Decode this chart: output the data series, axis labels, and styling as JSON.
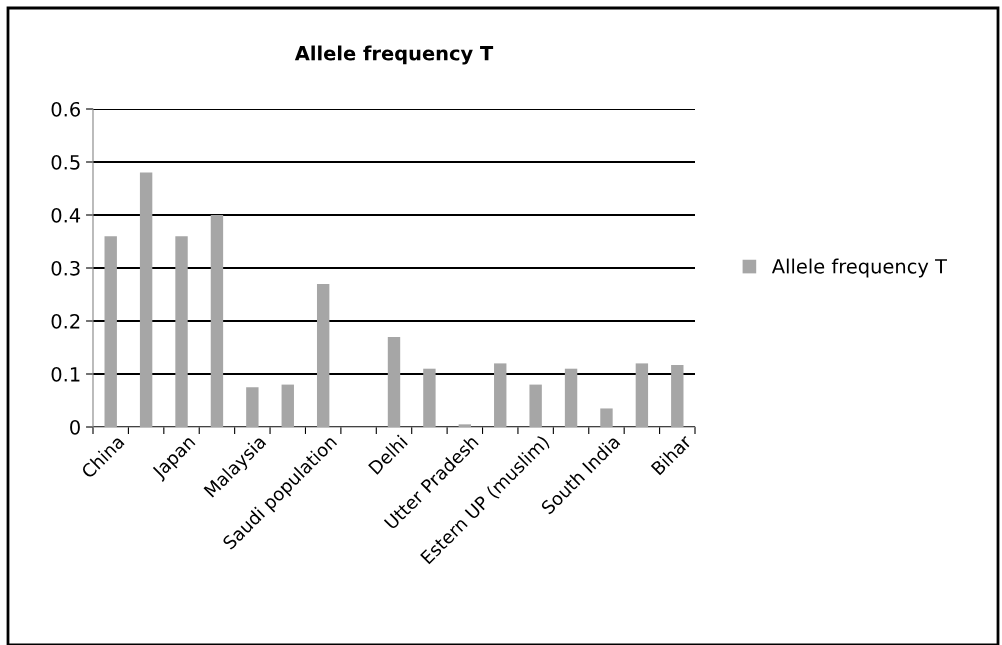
{
  "chart_data": {
    "type": "bar",
    "title": "Allele frequency T",
    "categories": [
      "China",
      null,
      "Japan",
      null,
      "Malaysia",
      null,
      "Saudi population",
      null,
      "Delhi",
      null,
      "Utter Pradesh",
      null,
      "Estern UP (muslim)",
      null,
      "South India",
      null,
      "Bihar"
    ],
    "series": [
      {
        "name": "Allele frequency T",
        "color": "#a6a6a6",
        "values": [
          0.36,
          0.48,
          0.36,
          0.4,
          0.075,
          0.08,
          0.27,
          null,
          0.17,
          0.11,
          0.005,
          0.12,
          0.08,
          0.11,
          0.035,
          0.12,
          0.117
        ]
      }
    ],
    "ylim": [
      0,
      0.6
    ],
    "yticks": [
      {
        "value": 0,
        "label": "0"
      },
      0.1,
      0.2,
      0.3,
      0.4,
      0.5,
      0.6
    ],
    "grid": "y",
    "legend": "right"
  }
}
